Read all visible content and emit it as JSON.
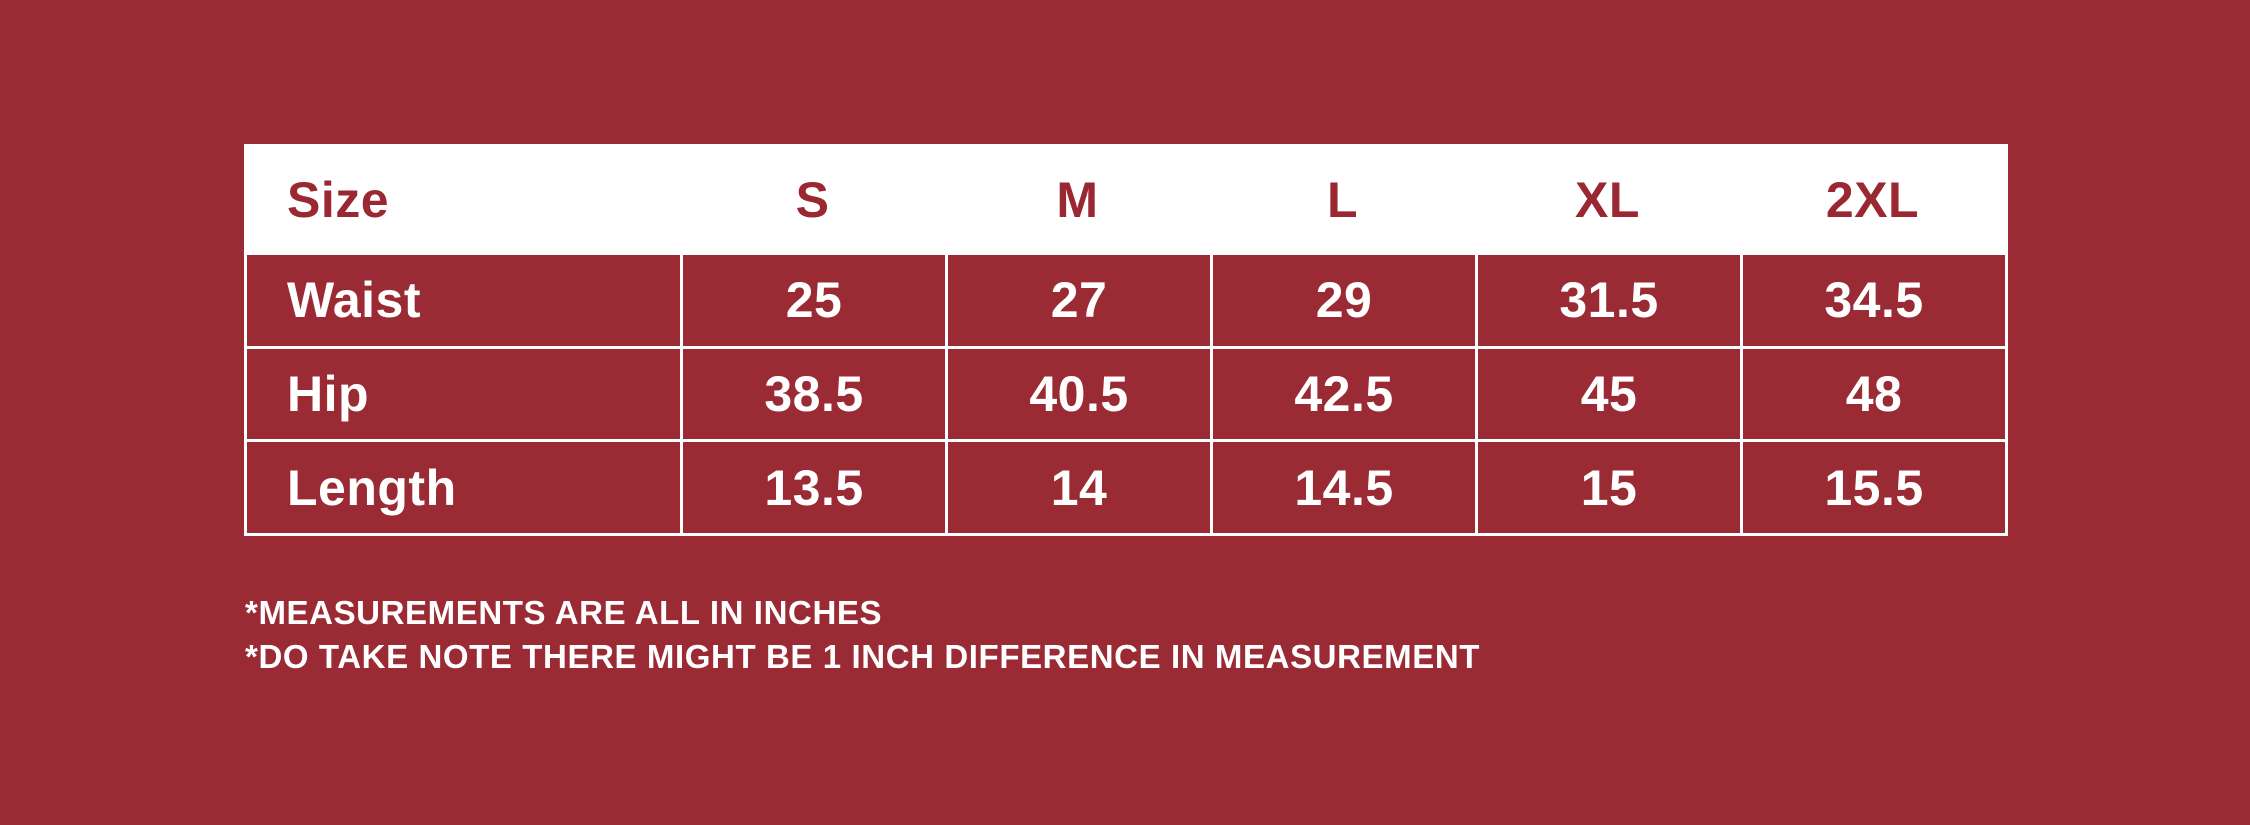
{
  "colors": {
    "background": "#9A2A34",
    "table_red": "#9A2A34",
    "header_bg": "#FFFFFF",
    "header_text": "#992832",
    "cell_text": "#FFFFFF",
    "grid": "#FFFFFF"
  },
  "size_chart": {
    "header": [
      "Size",
      "S",
      "M",
      "L",
      "XL",
      "2XL"
    ],
    "rows": [
      {
        "label": "Waist",
        "values": [
          "25",
          "27",
          "29",
          "31.5",
          "34.5"
        ]
      },
      {
        "label": "Hip",
        "values": [
          "38.5",
          "40.5",
          "42.5",
          "45",
          "48"
        ]
      },
      {
        "label": "Length",
        "values": [
          "13.5",
          "14",
          "14.5",
          "15",
          "15.5"
        ]
      }
    ]
  },
  "notes": {
    "line1": "*MEASUREMENTS ARE ALL IN INCHES",
    "line2": "*DO TAKE NOTE THERE MIGHT BE 1 INCH DIFFERENCE IN MEASUREMENT"
  },
  "chart_data": {
    "type": "table",
    "columns": [
      "Size",
      "S",
      "M",
      "L",
      "XL",
      "2XL"
    ],
    "rows": [
      [
        "Waist",
        25,
        27,
        29,
        31.5,
        34.5
      ],
      [
        "Hip",
        38.5,
        40.5,
        42.5,
        45,
        48
      ],
      [
        "Length",
        13.5,
        14,
        14.5,
        15,
        15.5
      ]
    ],
    "units": "inches",
    "notes": [
      "*MEASUREMENTS ARE ALL IN INCHES",
      "*DO TAKE NOTE THERE MIGHT BE 1 INCH DIFFERENCE IN MEASUREMENT"
    ]
  }
}
